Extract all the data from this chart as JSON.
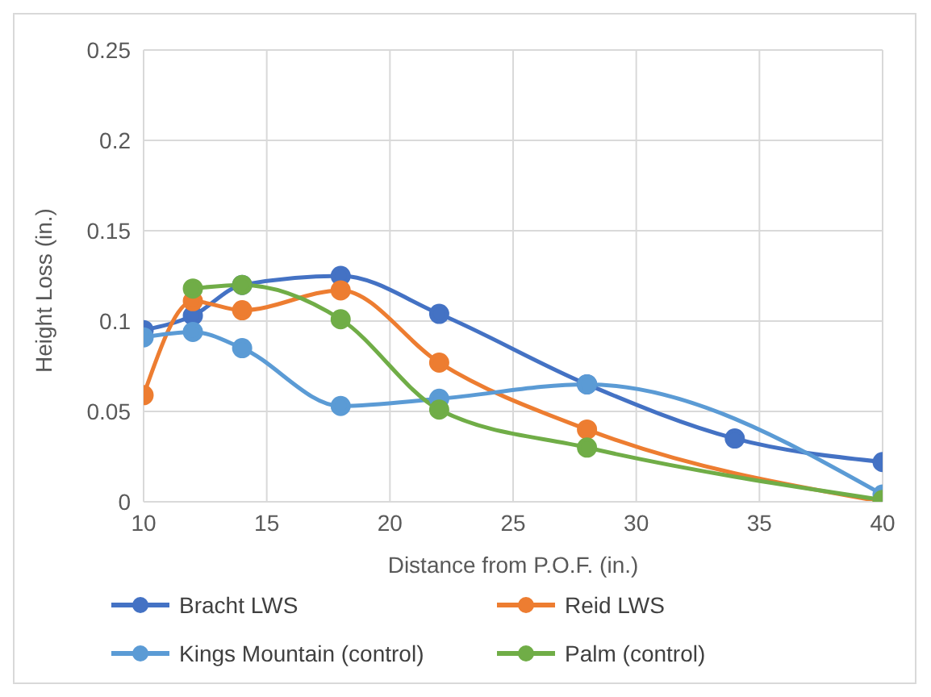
{
  "chart_data": {
    "type": "line",
    "xlabel": "Distance from P.O.F. (in.)",
    "ylabel": "Height Loss (in.)",
    "xlim": [
      10,
      40
    ],
    "xticks": [
      10,
      15,
      20,
      25,
      30,
      35,
      40
    ],
    "ylim": [
      0,
      0.25
    ],
    "yticks": [
      0,
      0.05,
      0.1,
      0.15,
      0.2,
      0.25
    ],
    "grid": true,
    "legend": "bottom",
    "marker": "circle",
    "line_style": "solid",
    "series": [
      {
        "name": "Bracht LWS",
        "color": "#4472c4",
        "x": [
          10,
          12,
          14,
          18,
          22,
          28,
          34,
          40
        ],
        "values": [
          0.095,
          0.103,
          0.12,
          0.125,
          0.104,
          0.065,
          0.035,
          0.022
        ]
      },
      {
        "name": "Reid LWS",
        "color": "#ed7d31",
        "x": [
          10,
          12,
          14,
          18,
          22,
          28,
          40
        ],
        "values": [
          0.059,
          0.111,
          0.106,
          0.117,
          0.077,
          0.04,
          0
        ]
      },
      {
        "name": "Kings Mountain (control)",
        "color": "#5b9bd5",
        "x": [
          10,
          12,
          14,
          18,
          22,
          28,
          40
        ],
        "values": [
          0.091,
          0.094,
          0.085,
          0.053,
          0.057,
          0.065,
          0.004
        ]
      },
      {
        "name": "Palm (control)",
        "color": "#70ad47",
        "x": [
          12,
          14,
          18,
          22,
          28,
          40
        ],
        "values": [
          0.118,
          0.12,
          0.101,
          0.051,
          0.03,
          0.001
        ]
      }
    ]
  }
}
